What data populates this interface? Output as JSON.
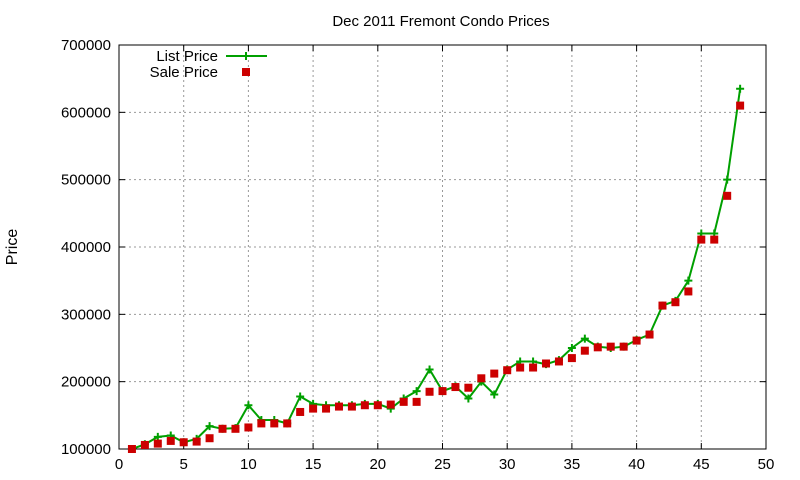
{
  "chart_data": {
    "type": "line",
    "title": "Dec 2011 Fremont Condo Prices",
    "xlabel": "",
    "ylabel": "Price",
    "xlim": [
      0,
      50
    ],
    "ylim": [
      100000,
      700000
    ],
    "xticks": [
      0,
      5,
      10,
      15,
      20,
      25,
      30,
      35,
      40,
      45,
      50
    ],
    "yticks": [
      100000,
      200000,
      300000,
      400000,
      500000,
      600000,
      700000
    ],
    "grid": true,
    "legend_position": "top-left",
    "colors": {
      "list": "#00a000",
      "sale": "#cc0000",
      "grid": "#999999"
    },
    "series": [
      {
        "name": "List Price",
        "style": "line-plus",
        "x": [
          1,
          2,
          3,
          4,
          5,
          6,
          7,
          8,
          9,
          10,
          11,
          12,
          13,
          14,
          15,
          16,
          17,
          18,
          19,
          20,
          21,
          22,
          23,
          24,
          25,
          26,
          27,
          28,
          29,
          30,
          31,
          32,
          33,
          34,
          35,
          36,
          37,
          38,
          39,
          40,
          41,
          42,
          43,
          44,
          45,
          46,
          47,
          48
        ],
        "y": [
          100000,
          107000,
          118000,
          120000,
          110000,
          115000,
          134000,
          130000,
          131000,
          165000,
          143000,
          143000,
          138000,
          178000,
          167000,
          165000,
          165000,
          165000,
          167000,
          167000,
          160000,
          175000,
          186000,
          218000,
          186000,
          193000,
          175000,
          200000,
          181000,
          218000,
          230000,
          230000,
          226000,
          232000,
          250000,
          264000,
          252000,
          250000,
          252000,
          262000,
          270000,
          313000,
          320000,
          350000,
          420000,
          420000,
          500000,
          635000
        ]
      },
      {
        "name": "Sale Price",
        "style": "square-points",
        "x": [
          1,
          2,
          3,
          4,
          5,
          6,
          7,
          8,
          9,
          10,
          11,
          12,
          13,
          14,
          15,
          16,
          17,
          18,
          19,
          20,
          21,
          22,
          23,
          24,
          25,
          26,
          27,
          28,
          29,
          30,
          31,
          32,
          33,
          34,
          35,
          36,
          37,
          38,
          39,
          40,
          41,
          42,
          43,
          44,
          45,
          46,
          47,
          48
        ],
        "y": [
          100000,
          106000,
          108000,
          112000,
          110000,
          111000,
          116000,
          130000,
          130000,
          132000,
          138000,
          138000,
          138000,
          155000,
          160000,
          160000,
          163000,
          163000,
          165000,
          165000,
          166000,
          170000,
          170000,
          185000,
          186000,
          192000,
          191000,
          205000,
          212000,
          217000,
          221000,
          221000,
          227000,
          230000,
          235000,
          246000,
          251000,
          252000,
          252000,
          261000,
          270000,
          313000,
          318000,
          334000,
          411000,
          411000,
          476000,
          610000
        ]
      }
    ]
  }
}
